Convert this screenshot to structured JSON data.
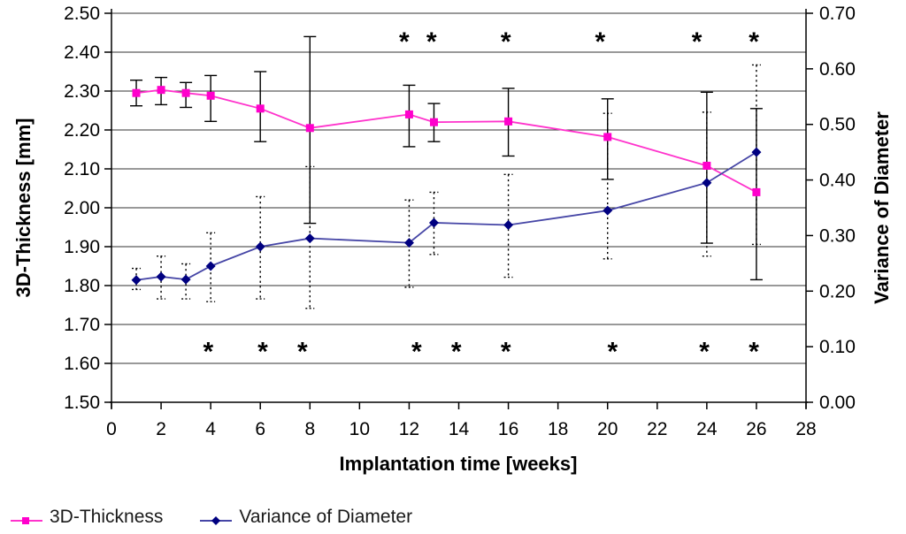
{
  "chart_data": {
    "type": "line",
    "title": "",
    "x_axis": {
      "label": "Implantation time [weeks]",
      "min": 0,
      "max": 28,
      "ticks": [
        "0",
        "2",
        "4",
        "6",
        "8",
        "10",
        "12",
        "14",
        "16",
        "18",
        "20",
        "22",
        "24",
        "26",
        "28"
      ]
    },
    "y_left": {
      "label": "3D-Thickness [mm]",
      "min": 1.5,
      "max": 2.5,
      "ticks": [
        "2.50",
        "2.40",
        "2.30",
        "2.20",
        "2.10",
        "2.00",
        "1.90",
        "1.80",
        "1.70",
        "1.60",
        "1.50"
      ]
    },
    "y_right": {
      "label": "Variance of Diameter",
      "min": 0.0,
      "max": 0.7,
      "ticks": [
        "0.70",
        "0.60",
        "0.50",
        "0.40",
        "0.30",
        "0.20",
        "0.10",
        "0.00"
      ]
    },
    "weeks": [
      1,
      2,
      3,
      4,
      6,
      8,
      12,
      13,
      16,
      20,
      24,
      26
    ],
    "series": [
      {
        "name": "3D-Thickness",
        "axis": "left",
        "marker": "square",
        "marker_color": "#FF00CC",
        "line_color": "#FF33CC",
        "error_style": "solid",
        "values": [
          2.295,
          2.303,
          2.295,
          2.288,
          2.255,
          2.205,
          2.24,
          2.22,
          2.222,
          2.182,
          2.108,
          2.04
        ],
        "err_low": [
          2.262,
          2.265,
          2.258,
          2.222,
          2.17,
          1.96,
          2.157,
          2.17,
          2.133,
          2.073,
          1.909,
          1.815
        ],
        "err_high": [
          2.328,
          2.335,
          2.322,
          2.34,
          2.35,
          2.44,
          2.315,
          2.268,
          2.307,
          2.28,
          2.297,
          2.255
        ]
      },
      {
        "name": "Variance of Diameter",
        "axis": "right",
        "marker": "diamond",
        "marker_color": "#000080",
        "line_color": "#4646A6",
        "error_style": "dotted",
        "values": [
          0.22,
          0.226,
          0.221,
          0.245,
          0.28,
          0.295,
          0.287,
          0.323,
          0.319,
          0.345,
          0.395,
          0.45
        ],
        "err_low": [
          0.203,
          0.186,
          0.186,
          0.181,
          0.186,
          0.169,
          0.207,
          0.266,
          0.225,
          0.258,
          0.263,
          0.284
        ],
        "err_high": [
          0.241,
          0.263,
          0.249,
          0.305,
          0.37,
          0.424,
          0.364,
          0.378,
          0.41,
          0.52,
          0.522,
          0.607
        ]
      }
    ],
    "significance_markers": {
      "symbol": "*",
      "top_row": {
        "y_left_value": 2.434,
        "weeks": [
          11.8,
          12.9,
          15.9,
          19.7,
          23.6,
          25.9
        ]
      },
      "bottom_row": {
        "y_left_value": 1.638,
        "weeks": [
          3.9,
          6.1,
          7.7,
          12.3,
          13.9,
          15.9,
          20.2,
          23.9,
          25.9
        ]
      }
    },
    "legend": {
      "position": "bottom-left",
      "items": [
        {
          "label": "3D-Thickness"
        },
        {
          "label": "Variance of Diameter"
        }
      ]
    },
    "grid": "horizontal",
    "colors": {
      "background": "#ffffff",
      "gridline": "#333333",
      "axis": "#000000",
      "error_bar": "#000000",
      "annotation": "#000000"
    }
  }
}
